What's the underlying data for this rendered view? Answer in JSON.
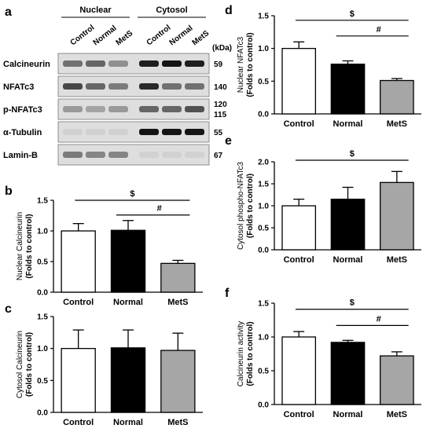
{
  "blot": {
    "panel_letter": "a",
    "groups": [
      {
        "label": "Nuclear",
        "lanes": [
          "Control",
          "Normal",
          "MetS"
        ]
      },
      {
        "label": "Cytosol",
        "lanes": [
          "Control",
          "Normal",
          "MetS"
        ]
      }
    ],
    "unit": "(kDa)",
    "rows": [
      {
        "name": "Calcineurin",
        "kda": [
          "59"
        ],
        "nuclear": [
          0.55,
          0.6,
          0.4
        ],
        "cytosol": [
          0.95,
          1.0,
          0.95
        ]
      },
      {
        "name": "NFATc3",
        "kda": [
          "140"
        ],
        "nuclear": [
          0.75,
          0.6,
          0.5
        ],
        "cytosol": [
          0.9,
          0.55,
          0.55
        ]
      },
      {
        "name": "p-NFATc3",
        "kda": [
          "120",
          "115"
        ],
        "nuclear": [
          0.35,
          0.3,
          0.35
        ],
        "cytosol": [
          0.6,
          0.6,
          0.7
        ]
      },
      {
        "name": "α-Tubulin",
        "kda": [
          "55"
        ],
        "nuclear": [
          0.08,
          0.08,
          0.08
        ],
        "cytosol": [
          1.0,
          1.0,
          1.0
        ]
      },
      {
        "name": "Lamin-B",
        "kda": [
          "67"
        ],
        "nuclear": [
          0.5,
          0.45,
          0.45
        ],
        "cytosol": [
          0.08,
          0.08,
          0.08
        ]
      }
    ]
  },
  "chart_data": [
    {
      "panel": "b",
      "type": "bar",
      "categories": [
        "Control",
        "Normal",
        "MetS"
      ],
      "values": [
        1.0,
        1.01,
        0.47
      ],
      "errors": [
        0.12,
        0.16,
        0.05
      ],
      "colors": [
        "#ffffff",
        "#000000",
        "#a6a6a6"
      ],
      "ylabel_lines": [
        "Nuclear Calcineurin",
        "(Folds to control)"
      ],
      "ylim": [
        0.0,
        1.5
      ],
      "yticks": [
        "0.0",
        "0.5",
        "1.0",
        "1.5"
      ],
      "significance": [
        {
          "symbol": "$",
          "from": 0,
          "to": 2
        },
        {
          "symbol": "#",
          "from": 1,
          "to": 2
        }
      ]
    },
    {
      "panel": "c",
      "type": "bar",
      "categories": [
        "Control",
        "Normal",
        "MetS"
      ],
      "values": [
        1.0,
        1.01,
        0.97
      ],
      "errors": [
        0.29,
        0.28,
        0.27
      ],
      "colors": [
        "#ffffff",
        "#000000",
        "#a6a6a6"
      ],
      "ylabel_lines": [
        "Cytosol Calcineurin",
        "(Folds to control)"
      ],
      "ylim": [
        0.0,
        1.5
      ],
      "yticks": [
        "0.0",
        "0.5",
        "1.0",
        "1.5"
      ],
      "significance": []
    },
    {
      "panel": "d",
      "type": "bar",
      "categories": [
        "Control",
        "Normal",
        "MetS"
      ],
      "values": [
        1.0,
        0.76,
        0.51
      ],
      "errors": [
        0.1,
        0.05,
        0.03
      ],
      "colors": [
        "#ffffff",
        "#000000",
        "#a6a6a6"
      ],
      "ylabel_lines": [
        "Nuclear NFATc3",
        "(Folds to control)"
      ],
      "ylim": [
        0.0,
        1.5
      ],
      "yticks": [
        "0.0",
        "0.5",
        "1.0",
        "1.5"
      ],
      "significance": [
        {
          "symbol": "$",
          "from": 0,
          "to": 2
        },
        {
          "symbol": "#",
          "from": 1,
          "to": 2
        }
      ]
    },
    {
      "panel": "e",
      "type": "bar",
      "categories": [
        "Control",
        "Normal",
        "MetS"
      ],
      "values": [
        1.0,
        1.15,
        1.53
      ],
      "errors": [
        0.15,
        0.27,
        0.25
      ],
      "colors": [
        "#ffffff",
        "#000000",
        "#a6a6a6"
      ],
      "ylabel_lines": [
        "Cytosol phospho-NFATc3",
        "(Folds to control)"
      ],
      "ylim": [
        0.0,
        2.0
      ],
      "yticks": [
        "0.0",
        "0.5",
        "1.0",
        "1.5",
        "2.0"
      ],
      "significance": [
        {
          "symbol": "$",
          "from": 0,
          "to": 2
        }
      ]
    },
    {
      "panel": "f",
      "type": "bar",
      "categories": [
        "Control",
        "Normal",
        "MetS"
      ],
      "values": [
        1.0,
        0.92,
        0.72
      ],
      "errors": [
        0.08,
        0.03,
        0.06
      ],
      "colors": [
        "#ffffff",
        "#000000",
        "#a6a6a6"
      ],
      "ylabel_lines": [
        "Calcineurin activity",
        "(Folds to control)"
      ],
      "ylim": [
        0.0,
        1.5
      ],
      "yticks": [
        "0.0",
        "0.5",
        "1.0",
        "1.5"
      ],
      "significance": [
        {
          "symbol": "$",
          "from": 0,
          "to": 2
        },
        {
          "symbol": "#",
          "from": 1,
          "to": 2
        }
      ]
    }
  ]
}
